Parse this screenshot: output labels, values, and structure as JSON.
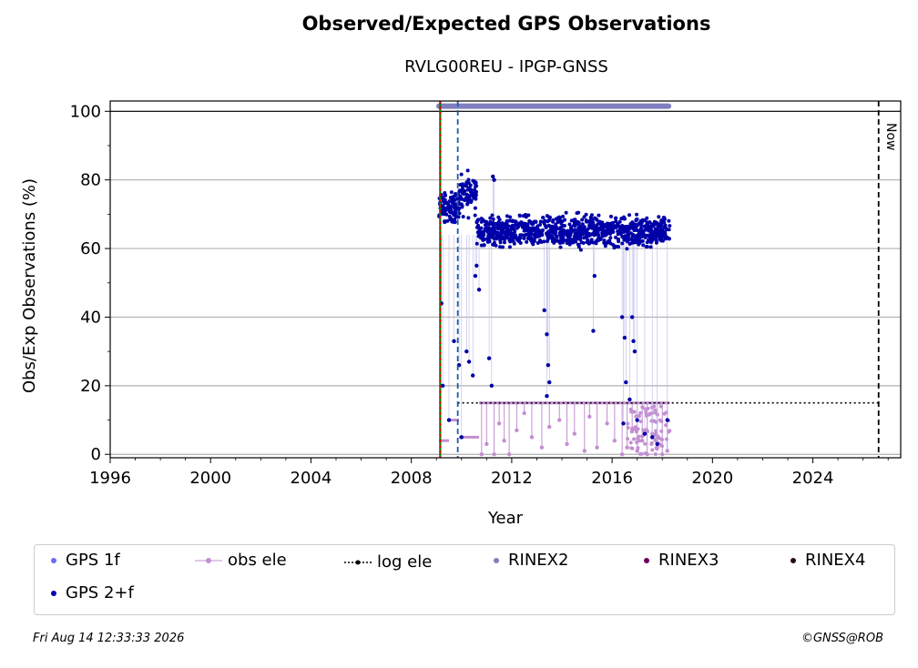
{
  "title": "Observed/Expected GPS Observations",
  "subtitle": "RVLG00REU - IPGP-GNSS",
  "footer": {
    "timestamp": "Fri Aug 14 12:33:33 2026",
    "copyright": "©GNSS@ROB"
  },
  "colors": {
    "gps_1f": "#6b6bf5",
    "gps_2f": "#0000a8",
    "obs_ele": "#c38fd1",
    "log_ele": "#000000",
    "rinex2": "#7f7fbf",
    "rinex3": "#6a0060",
    "rinex4": "#2a0a1e",
    "green_line": "#008000",
    "red_line": "#cc0000",
    "blue_dash": "#1f5aa6"
  },
  "chart_data": {
    "type": "scatter",
    "title": "Observed/Expected GPS Observations",
    "subtitle": "RVLG00REU - IPGP-GNSS",
    "xlabel": "Year",
    "ylabel": "Obs/Exp Observations (%)",
    "xlim": [
      1996,
      2027.5
    ],
    "ylim": [
      -1,
      103
    ],
    "xticks": [
      "1996",
      "2000",
      "2004",
      "2008",
      "2012",
      "2016",
      "2020",
      "2024"
    ],
    "yticks": [
      "0",
      "20",
      "40",
      "60",
      "80",
      "100"
    ],
    "grid": "horizontal",
    "legend_placement": "bottom",
    "now_label": "Now",
    "now_year": 2026.62,
    "vertical_lines": [
      {
        "x": 2009.15,
        "style": "solid",
        "color": "green"
      },
      {
        "x": 2009.15,
        "style": "dotted",
        "color": "red"
      },
      {
        "x": 2009.85,
        "style": "dashed",
        "color": "blue"
      }
    ],
    "rinex2_bar": {
      "x_start": 2009.1,
      "x_end": 2018.25,
      "y": 101.5
    },
    "log_ele_line": {
      "x_start": 2009.85,
      "x_end": 2026.62,
      "y": 15
    },
    "series": [
      {
        "name": "GPS 2+f",
        "segments": [
          {
            "x_start": 2009.1,
            "x_end": 2009.9,
            "y_center": 72,
            "spread": 3
          },
          {
            "x_start": 2009.9,
            "x_end": 2010.6,
            "y_center": 76,
            "spread": 4
          },
          {
            "x_start": 2010.6,
            "x_end": 2018.3,
            "y_center": 65,
            "spread": 3
          }
        ],
        "outliers": [
          [
            2009.2,
            44
          ],
          [
            2009.25,
            20
          ],
          [
            2009.5,
            10
          ],
          [
            2009.7,
            33
          ],
          [
            2009.9,
            26
          ],
          [
            2010.0,
            5
          ],
          [
            2010.2,
            30
          ],
          [
            2010.3,
            27
          ],
          [
            2010.45,
            23
          ],
          [
            2010.6,
            55
          ],
          [
            2010.55,
            52
          ],
          [
            2010.7,
            48
          ],
          [
            2010.9,
            61
          ],
          [
            2011.1,
            28
          ],
          [
            2011.2,
            20
          ],
          [
            2011.25,
            81
          ],
          [
            2011.3,
            80
          ],
          [
            2013.3,
            42
          ],
          [
            2013.4,
            35
          ],
          [
            2013.45,
            26
          ],
          [
            2013.5,
            21
          ],
          [
            2013.4,
            17
          ],
          [
            2015.3,
            52
          ],
          [
            2015.25,
            36
          ],
          [
            2016.4,
            40
          ],
          [
            2016.5,
            34
          ],
          [
            2016.55,
            21
          ],
          [
            2016.7,
            16
          ],
          [
            2016.8,
            40
          ],
          [
            2016.85,
            33
          ],
          [
            2016.9,
            30
          ],
          [
            2017.0,
            10
          ],
          [
            2017.3,
            6
          ],
          [
            2017.6,
            5
          ],
          [
            2017.8,
            3
          ],
          [
            2018.2,
            10
          ],
          [
            2016.45,
            9
          ]
        ]
      },
      {
        "name": "obs ele",
        "segments": [
          {
            "x_start": 2009.1,
            "x_end": 2009.5,
            "y": 4
          },
          {
            "x_start": 2009.5,
            "x_end": 2009.9,
            "y": 10
          },
          {
            "x_start": 2009.9,
            "x_end": 2010.7,
            "y": 5
          },
          {
            "x_start": 2010.7,
            "x_end": 2018.3,
            "y": 15
          }
        ],
        "drops": [
          [
            2010.8,
            0
          ],
          [
            2011.0,
            3
          ],
          [
            2011.3,
            0
          ],
          [
            2011.5,
            9
          ],
          [
            2011.7,
            4
          ],
          [
            2011.9,
            0
          ],
          [
            2012.2,
            7
          ],
          [
            2012.5,
            12
          ],
          [
            2012.8,
            5
          ],
          [
            2013.2,
            2
          ],
          [
            2013.5,
            8
          ],
          [
            2013.9,
            10
          ],
          [
            2014.2,
            3
          ],
          [
            2014.5,
            6
          ],
          [
            2014.9,
            1
          ],
          [
            2015.1,
            11
          ],
          [
            2015.4,
            2
          ],
          [
            2015.8,
            9
          ],
          [
            2016.1,
            4
          ],
          [
            2016.4,
            0
          ],
          [
            2016.6,
            2
          ],
          [
            2016.8,
            7
          ],
          [
            2017.0,
            1
          ],
          [
            2017.2,
            4
          ],
          [
            2017.4,
            0
          ],
          [
            2017.6,
            6
          ],
          [
            2017.8,
            2
          ],
          [
            2018.0,
            0
          ],
          [
            2018.2,
            1
          ]
        ]
      },
      {
        "name": "GPS 1f",
        "points": []
      },
      {
        "name": "log ele",
        "points": []
      },
      {
        "name": "RINEX2",
        "points": []
      },
      {
        "name": "RINEX3",
        "points": []
      },
      {
        "name": "RINEX4",
        "points": []
      }
    ]
  },
  "legend": {
    "gps_1f": "GPS 1f",
    "obs_ele": "obs ele",
    "log_ele": "log ele",
    "rinex2": "RINEX2",
    "rinex3": "RINEX3",
    "rinex4": "RINEX4",
    "gps_2f": "GPS 2+f"
  }
}
